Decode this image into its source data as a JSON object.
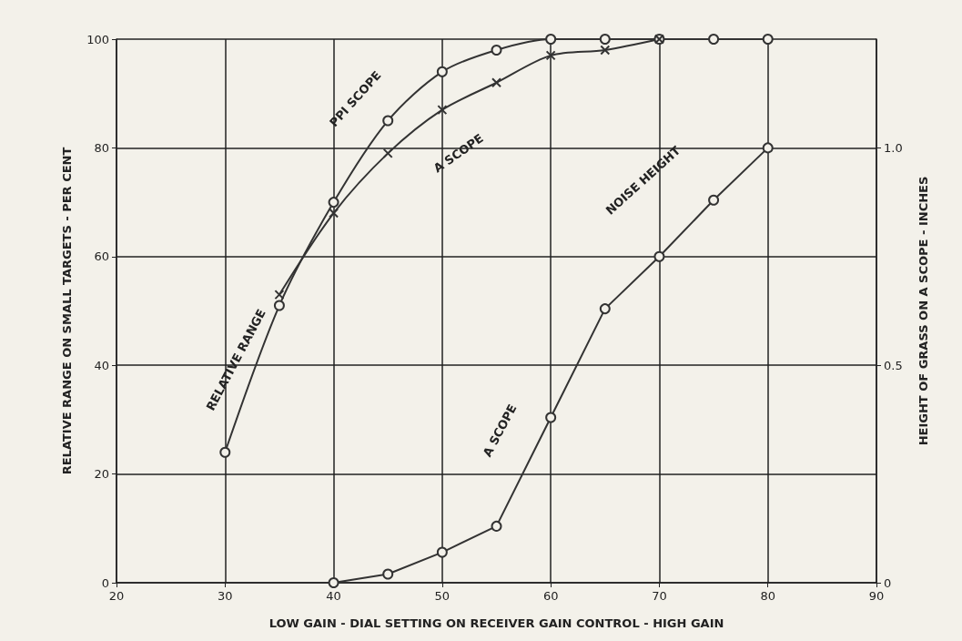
{
  "chart_data": {
    "type": "line",
    "xlabel": "LOW GAIN - DIAL SETTING ON RECEIVER GAIN CONTROL - HIGH GAIN",
    "ylabel": "RELATIVE RANGE ON SMALL TARGETS - PER CENT",
    "y2label": "HEIGHT OF GRASS ON A SCOPE - INCHES",
    "xlim": [
      20,
      90
    ],
    "xticks": [
      20,
      30,
      40,
      50,
      60,
      70,
      80,
      90
    ],
    "ylim": [
      0,
      100
    ],
    "yticks": [
      0,
      20,
      40,
      60,
      80,
      100
    ],
    "y2lim": [
      0,
      1.25
    ],
    "y2ticks": [
      0,
      0.5,
      {
        "value": 1,
        "label": "1.0"
      }
    ],
    "grid": true,
    "line_style": "solid",
    "series": [
      {
        "color": "#333333",
        "marker": "circle",
        "x": [
          30,
          35,
          40,
          45,
          50,
          55,
          60,
          65,
          70,
          75,
          80
        ],
        "values": [
          24,
          51,
          70,
          85,
          94,
          98,
          100,
          100,
          100,
          100,
          100
        ]
      },
      {
        "color": "#333333",
        "marker": "cross",
        "x": [
          35,
          40,
          45,
          50,
          55,
          60,
          65,
          70
        ],
        "values": [
          53,
          68,
          79,
          87,
          92,
          97,
          98,
          100
        ]
      },
      {
        "color": "#333333",
        "marker": "circle",
        "axis": "y2",
        "x": [
          40,
          45,
          50,
          55,
          60,
          65,
          70,
          75,
          80
        ],
        "values": [
          0,
          0.02,
          0.07,
          0.13,
          0.38,
          0.63,
          0.75,
          0.88,
          1.0
        ]
      }
    ],
    "annotations": [
      "RELATIVE RANGE",
      "PPI SCOPE",
      "A SCOPE",
      "A SCOPE",
      "NOISE HEIGHT"
    ]
  }
}
